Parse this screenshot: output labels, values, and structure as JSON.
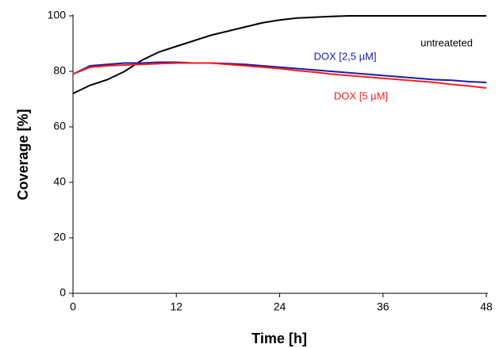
{
  "chart_data": {
    "type": "line",
    "x_label": "Time [h]",
    "y_label": "Coverage [%]",
    "x": [
      0,
      2,
      4,
      6,
      8,
      10,
      12,
      14,
      16,
      18,
      20,
      22,
      24,
      26,
      28,
      30,
      32,
      34,
      36,
      38,
      40,
      42,
      44,
      46,
      48
    ],
    "series": [
      {
        "name": "untreateted",
        "color": "#000000",
        "values": [
          72,
          75,
          77,
          80,
          84,
          87,
          89,
          91,
          93,
          94.5,
          96,
          97.5,
          98.5,
          99.2,
          99.5,
          99.8,
          100,
          100,
          100,
          100,
          100,
          100,
          100,
          100,
          100
        ]
      },
      {
        "name": "DOX [2,5 µM]",
        "color": "#1a1aa8",
        "values": [
          79,
          82,
          82.5,
          83,
          83,
          83.3,
          83.3,
          83,
          83,
          82.8,
          82.5,
          82,
          81.5,
          81,
          80.5,
          80,
          79.5,
          79,
          78.5,
          78,
          77.5,
          77,
          76.8,
          76.3,
          76
        ]
      },
      {
        "name": "DOX [5 µM]",
        "color": "#ff1a1a",
        "values": [
          79,
          81.5,
          82,
          82.3,
          82.5,
          82.8,
          83,
          83,
          83,
          82.5,
          82,
          81.5,
          81,
          80.3,
          79.7,
          79,
          78.5,
          78,
          77.5,
          77,
          76.5,
          76,
          75.3,
          74.7,
          74
        ]
      }
    ],
    "xlim": [
      0,
      48
    ],
    "xticks": [
      0,
      12,
      24,
      36,
      48
    ],
    "ylim": [
      0,
      100
    ],
    "yticks": [
      0,
      20,
      40,
      60,
      80,
      100
    ]
  }
}
